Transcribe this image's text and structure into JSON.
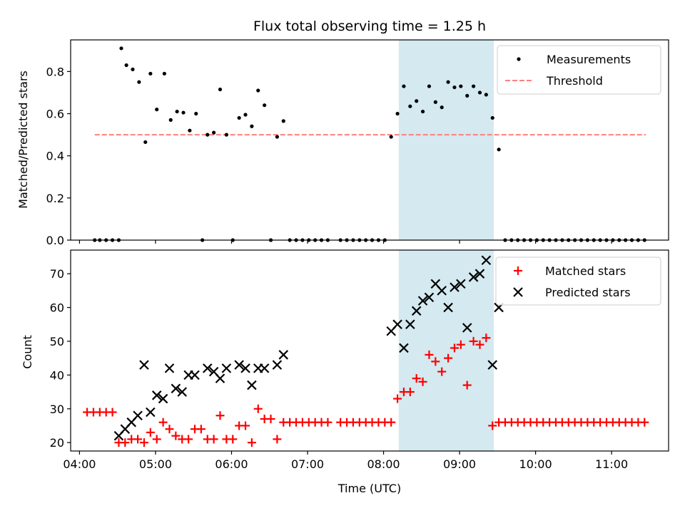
{
  "chart_data": [
    {
      "type": "scatter",
      "title": "Flux total observing time = 1.25 h",
      "xlabel": "",
      "ylabel": "Matched/Predicted stars",
      "ylim": [
        0,
        0.95
      ],
      "yticks": [
        "0.0",
        "0.2",
        "0.4",
        "0.6",
        "0.8"
      ],
      "highlight_span": {
        "start": "08:12",
        "end": "09:27",
        "color": "#d4e9f0"
      },
      "legend": {
        "position": "top-right",
        "entries": [
          "Measurements",
          "Threshold"
        ]
      },
      "threshold": {
        "name": "Threshold",
        "y": 0.5,
        "x_start": "04:12",
        "x_end": "11:27",
        "color": "#ff7f7f",
        "style": "dashed"
      },
      "series": [
        {
          "name": "Measurements",
          "marker": "dot",
          "color": "#000000",
          "points": [
            [
              "04:12",
              0
            ],
            [
              "04:16",
              0
            ],
            [
              "04:21",
              0
            ],
            [
              "04:26",
              0
            ],
            [
              "04:31",
              0
            ],
            [
              "04:33",
              0.91
            ],
            [
              "04:37",
              0.83
            ],
            [
              "04:42",
              0.81
            ],
            [
              "04:47",
              0.75
            ],
            [
              "04:52",
              0.465
            ],
            [
              "04:56",
              0.79
            ],
            [
              "05:01",
              0.62
            ],
            [
              "05:07",
              0.79
            ],
            [
              "05:12",
              0.57
            ],
            [
              "05:17",
              0.61
            ],
            [
              "05:22",
              0.605
            ],
            [
              "05:27",
              0.52
            ],
            [
              "05:32",
              0.6
            ],
            [
              "05:37",
              0
            ],
            [
              "05:41",
              0.5
            ],
            [
              "05:46",
              0.51
            ],
            [
              "05:51",
              0.715
            ],
            [
              "05:56",
              0.5
            ],
            [
              "06:01",
              0
            ],
            [
              "06:06",
              0.58
            ],
            [
              "06:11",
              0.595
            ],
            [
              "06:16",
              0.54
            ],
            [
              "06:21",
              0.71
            ],
            [
              "06:26",
              0.64
            ],
            [
              "06:31",
              0
            ],
            [
              "06:36",
              0.49
            ],
            [
              "06:41",
              0.565
            ],
            [
              "06:46",
              0
            ],
            [
              "06:51",
              0
            ],
            [
              "06:56",
              0
            ],
            [
              "07:01",
              0
            ],
            [
              "07:06",
              0
            ],
            [
              "07:11",
              0
            ],
            [
              "07:16",
              0
            ],
            [
              "07:26",
              0
            ],
            [
              "07:31",
              0
            ],
            [
              "07:36",
              0
            ],
            [
              "07:41",
              0
            ],
            [
              "07:46",
              0
            ],
            [
              "07:51",
              0
            ],
            [
              "07:56",
              0
            ],
            [
              "08:01",
              0
            ],
            [
              "08:06",
              0.49
            ],
            [
              "08:11",
              0.6
            ],
            [
              "08:16",
              0.73
            ],
            [
              "08:21",
              0.635
            ],
            [
              "08:26",
              0.66
            ],
            [
              "08:31",
              0.61
            ],
            [
              "08:36",
              0.73
            ],
            [
              "08:41",
              0.655
            ],
            [
              "08:46",
              0.63
            ],
            [
              "08:51",
              0.75
            ],
            [
              "08:56",
              0.725
            ],
            [
              "09:01",
              0.73
            ],
            [
              "09:06",
              0.685
            ],
            [
              "09:11",
              0.73
            ],
            [
              "09:16",
              0.7
            ],
            [
              "09:21",
              0.69
            ],
            [
              "09:26",
              0.58
            ],
            [
              "09:31",
              0.43
            ],
            [
              "09:36",
              0
            ],
            [
              "09:41",
              0
            ],
            [
              "09:46",
              0
            ],
            [
              "09:51",
              0
            ],
            [
              "09:56",
              0
            ],
            [
              "10:01",
              0
            ],
            [
              "10:06",
              0
            ],
            [
              "10:11",
              0
            ],
            [
              "10:16",
              0
            ],
            [
              "10:21",
              0
            ],
            [
              "10:26",
              0
            ],
            [
              "10:31",
              0
            ],
            [
              "10:36",
              0
            ],
            [
              "10:41",
              0
            ],
            [
              "10:46",
              0
            ],
            [
              "10:51",
              0
            ],
            [
              "10:56",
              0
            ],
            [
              "11:01",
              0
            ],
            [
              "11:06",
              0
            ],
            [
              "11:11",
              0
            ],
            [
              "11:16",
              0
            ],
            [
              "11:21",
              0
            ],
            [
              "11:26",
              0
            ]
          ]
        }
      ]
    },
    {
      "type": "scatter",
      "title": "",
      "xlabel": "Time (UTC)",
      "ylabel": "Count",
      "ylim": [
        17.5,
        77
      ],
      "yticks": [
        "20",
        "30",
        "40",
        "50",
        "60",
        "70"
      ],
      "xticks": [
        "04:00",
        "05:00",
        "06:00",
        "07:00",
        "08:00",
        "09:00",
        "10:00",
        "11:00"
      ],
      "xlim": [
        "03:53",
        "11:45"
      ],
      "highlight_span": {
        "start": "08:12",
        "end": "09:27",
        "color": "#d4e9f0"
      },
      "legend": {
        "position": "top-right",
        "entries": [
          "Matched stars",
          "Predicted stars"
        ]
      },
      "series": [
        {
          "name": "Matched stars",
          "marker": "plus",
          "color": "#ff0000",
          "points": [
            [
              "04:06",
              29
            ],
            [
              "04:11",
              29
            ],
            [
              "04:16",
              29
            ],
            [
              "04:21",
              29
            ],
            [
              "04:26",
              29
            ],
            [
              "04:31",
              20
            ],
            [
              "04:36",
              20
            ],
            [
              "04:41",
              21
            ],
            [
              "04:46",
              21
            ],
            [
              "04:51",
              20
            ],
            [
              "04:56",
              23
            ],
            [
              "05:01",
              21
            ],
            [
              "05:06",
              26
            ],
            [
              "05:11",
              24
            ],
            [
              "05:16",
              22
            ],
            [
              "05:21",
              21
            ],
            [
              "05:26",
              21
            ],
            [
              "05:31",
              24
            ],
            [
              "05:36",
              24
            ],
            [
              "05:41",
              21
            ],
            [
              "05:46",
              21
            ],
            [
              "05:51",
              28
            ],
            [
              "05:56",
              21
            ],
            [
              "06:01",
              21
            ],
            [
              "06:06",
              25
            ],
            [
              "06:11",
              25
            ],
            [
              "06:16",
              20
            ],
            [
              "06:21",
              30
            ],
            [
              "06:26",
              27
            ],
            [
              "06:31",
              27
            ],
            [
              "06:36",
              21
            ],
            [
              "06:41",
              26
            ],
            [
              "06:46",
              26
            ],
            [
              "06:51",
              26
            ],
            [
              "06:56",
              26
            ],
            [
              "07:01",
              26
            ],
            [
              "07:06",
              26
            ],
            [
              "07:11",
              26
            ],
            [
              "07:16",
              26
            ],
            [
              "07:26",
              26
            ],
            [
              "07:31",
              26
            ],
            [
              "07:36",
              26
            ],
            [
              "07:41",
              26
            ],
            [
              "07:46",
              26
            ],
            [
              "07:51",
              26
            ],
            [
              "07:56",
              26
            ],
            [
              "08:01",
              26
            ],
            [
              "08:06",
              26
            ],
            [
              "08:11",
              33
            ],
            [
              "08:16",
              35
            ],
            [
              "08:21",
              35
            ],
            [
              "08:26",
              39
            ],
            [
              "08:31",
              38
            ],
            [
              "08:36",
              46
            ],
            [
              "08:41",
              44
            ],
            [
              "08:46",
              41
            ],
            [
              "08:51",
              45
            ],
            [
              "08:56",
              48
            ],
            [
              "09:01",
              49
            ],
            [
              "09:06",
              37
            ],
            [
              "09:11",
              50
            ],
            [
              "09:16",
              49
            ],
            [
              "09:21",
              51
            ],
            [
              "09:26",
              25
            ],
            [
              "09:31",
              26
            ],
            [
              "09:36",
              26
            ],
            [
              "09:41",
              26
            ],
            [
              "09:46",
              26
            ],
            [
              "09:51",
              26
            ],
            [
              "09:56",
              26
            ],
            [
              "10:01",
              26
            ],
            [
              "10:06",
              26
            ],
            [
              "10:11",
              26
            ],
            [
              "10:16",
              26
            ],
            [
              "10:21",
              26
            ],
            [
              "10:26",
              26
            ],
            [
              "10:31",
              26
            ],
            [
              "10:36",
              26
            ],
            [
              "10:41",
              26
            ],
            [
              "10:46",
              26
            ],
            [
              "10:51",
              26
            ],
            [
              "10:56",
              26
            ],
            [
              "11:01",
              26
            ],
            [
              "11:06",
              26
            ],
            [
              "11:11",
              26
            ],
            [
              "11:16",
              26
            ],
            [
              "11:21",
              26
            ],
            [
              "11:26",
              26
            ]
          ]
        },
        {
          "name": "Predicted stars",
          "marker": "x",
          "color": "#000000",
          "points": [
            [
              "04:31",
              22
            ],
            [
              "04:36",
              24
            ],
            [
              "04:41",
              26
            ],
            [
              "04:46",
              28
            ],
            [
              "04:51",
              43
            ],
            [
              "04:56",
              29
            ],
            [
              "05:01",
              34
            ],
            [
              "05:06",
              33
            ],
            [
              "05:11",
              42
            ],
            [
              "05:16",
              36
            ],
            [
              "05:21",
              35
            ],
            [
              "05:26",
              40
            ],
            [
              "05:31",
              40
            ],
            [
              "05:41",
              42
            ],
            [
              "05:46",
              41
            ],
            [
              "05:51",
              39
            ],
            [
              "05:56",
              42
            ],
            [
              "06:06",
              43
            ],
            [
              "06:11",
              42
            ],
            [
              "06:16",
              37
            ],
            [
              "06:21",
              42
            ],
            [
              "06:26",
              42
            ],
            [
              "06:36",
              43
            ],
            [
              "06:41",
              46
            ],
            [
              "08:06",
              53
            ],
            [
              "08:11",
              55
            ],
            [
              "08:16",
              48
            ],
            [
              "08:21",
              55
            ],
            [
              "08:26",
              59
            ],
            [
              "08:31",
              62
            ],
            [
              "08:36",
              63
            ],
            [
              "08:41",
              67
            ],
            [
              "08:46",
              65
            ],
            [
              "08:51",
              60
            ],
            [
              "08:56",
              66
            ],
            [
              "09:01",
              67
            ],
            [
              "09:06",
              54
            ],
            [
              "09:11",
              69
            ],
            [
              "09:16",
              70
            ],
            [
              "09:21",
              74
            ],
            [
              "09:26",
              43
            ],
            [
              "09:31",
              60
            ]
          ]
        }
      ]
    }
  ]
}
